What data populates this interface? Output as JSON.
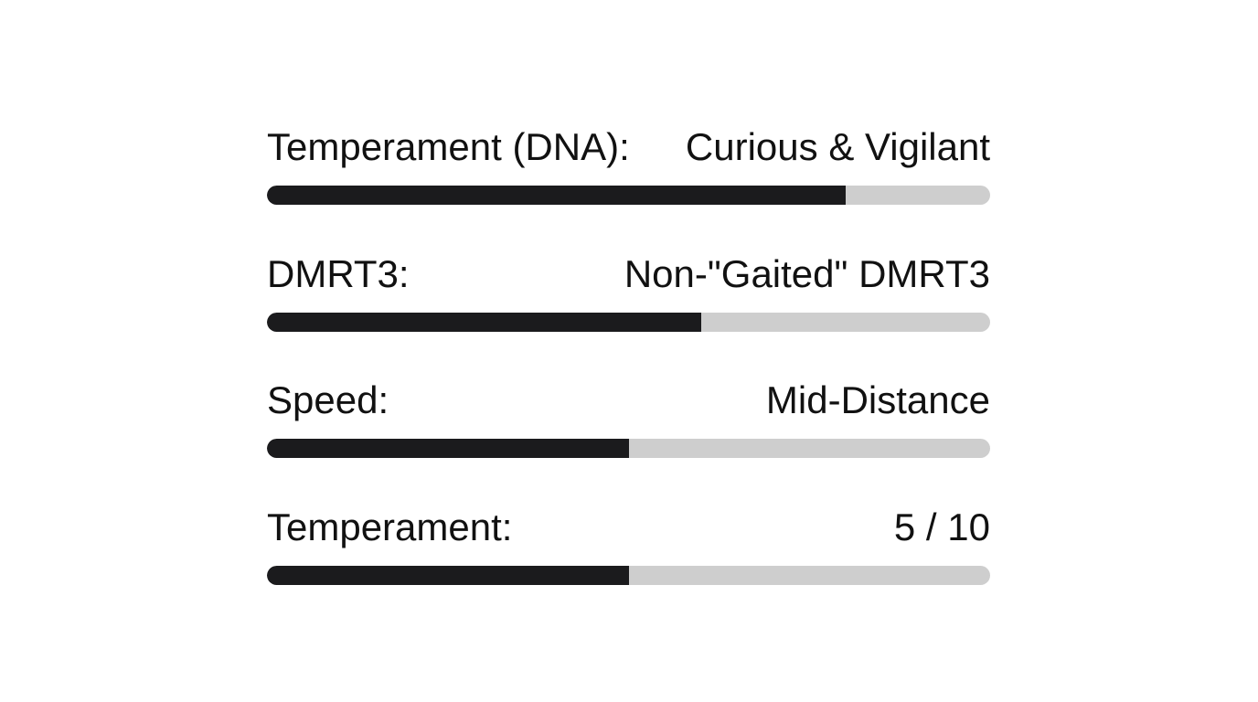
{
  "stats": [
    {
      "label": "Temperament (DNA):",
      "value": "Curious & Vigilant",
      "fill_fraction": 0.8
    },
    {
      "label": "DMRT3:",
      "value": "Non-\"Gaited\" DMRT3",
      "fill_fraction": 0.6
    },
    {
      "label": "Speed:",
      "value": "Mid-Distance",
      "fill_fraction": 0.5
    },
    {
      "label": "Temperament:",
      "value": "5 / 10",
      "fill_fraction": 0.5
    }
  ],
  "colors": {
    "bar_fill": "#1b1b1d",
    "bar_track": "#cecece",
    "text": "#111111",
    "background": "#ffffff"
  }
}
